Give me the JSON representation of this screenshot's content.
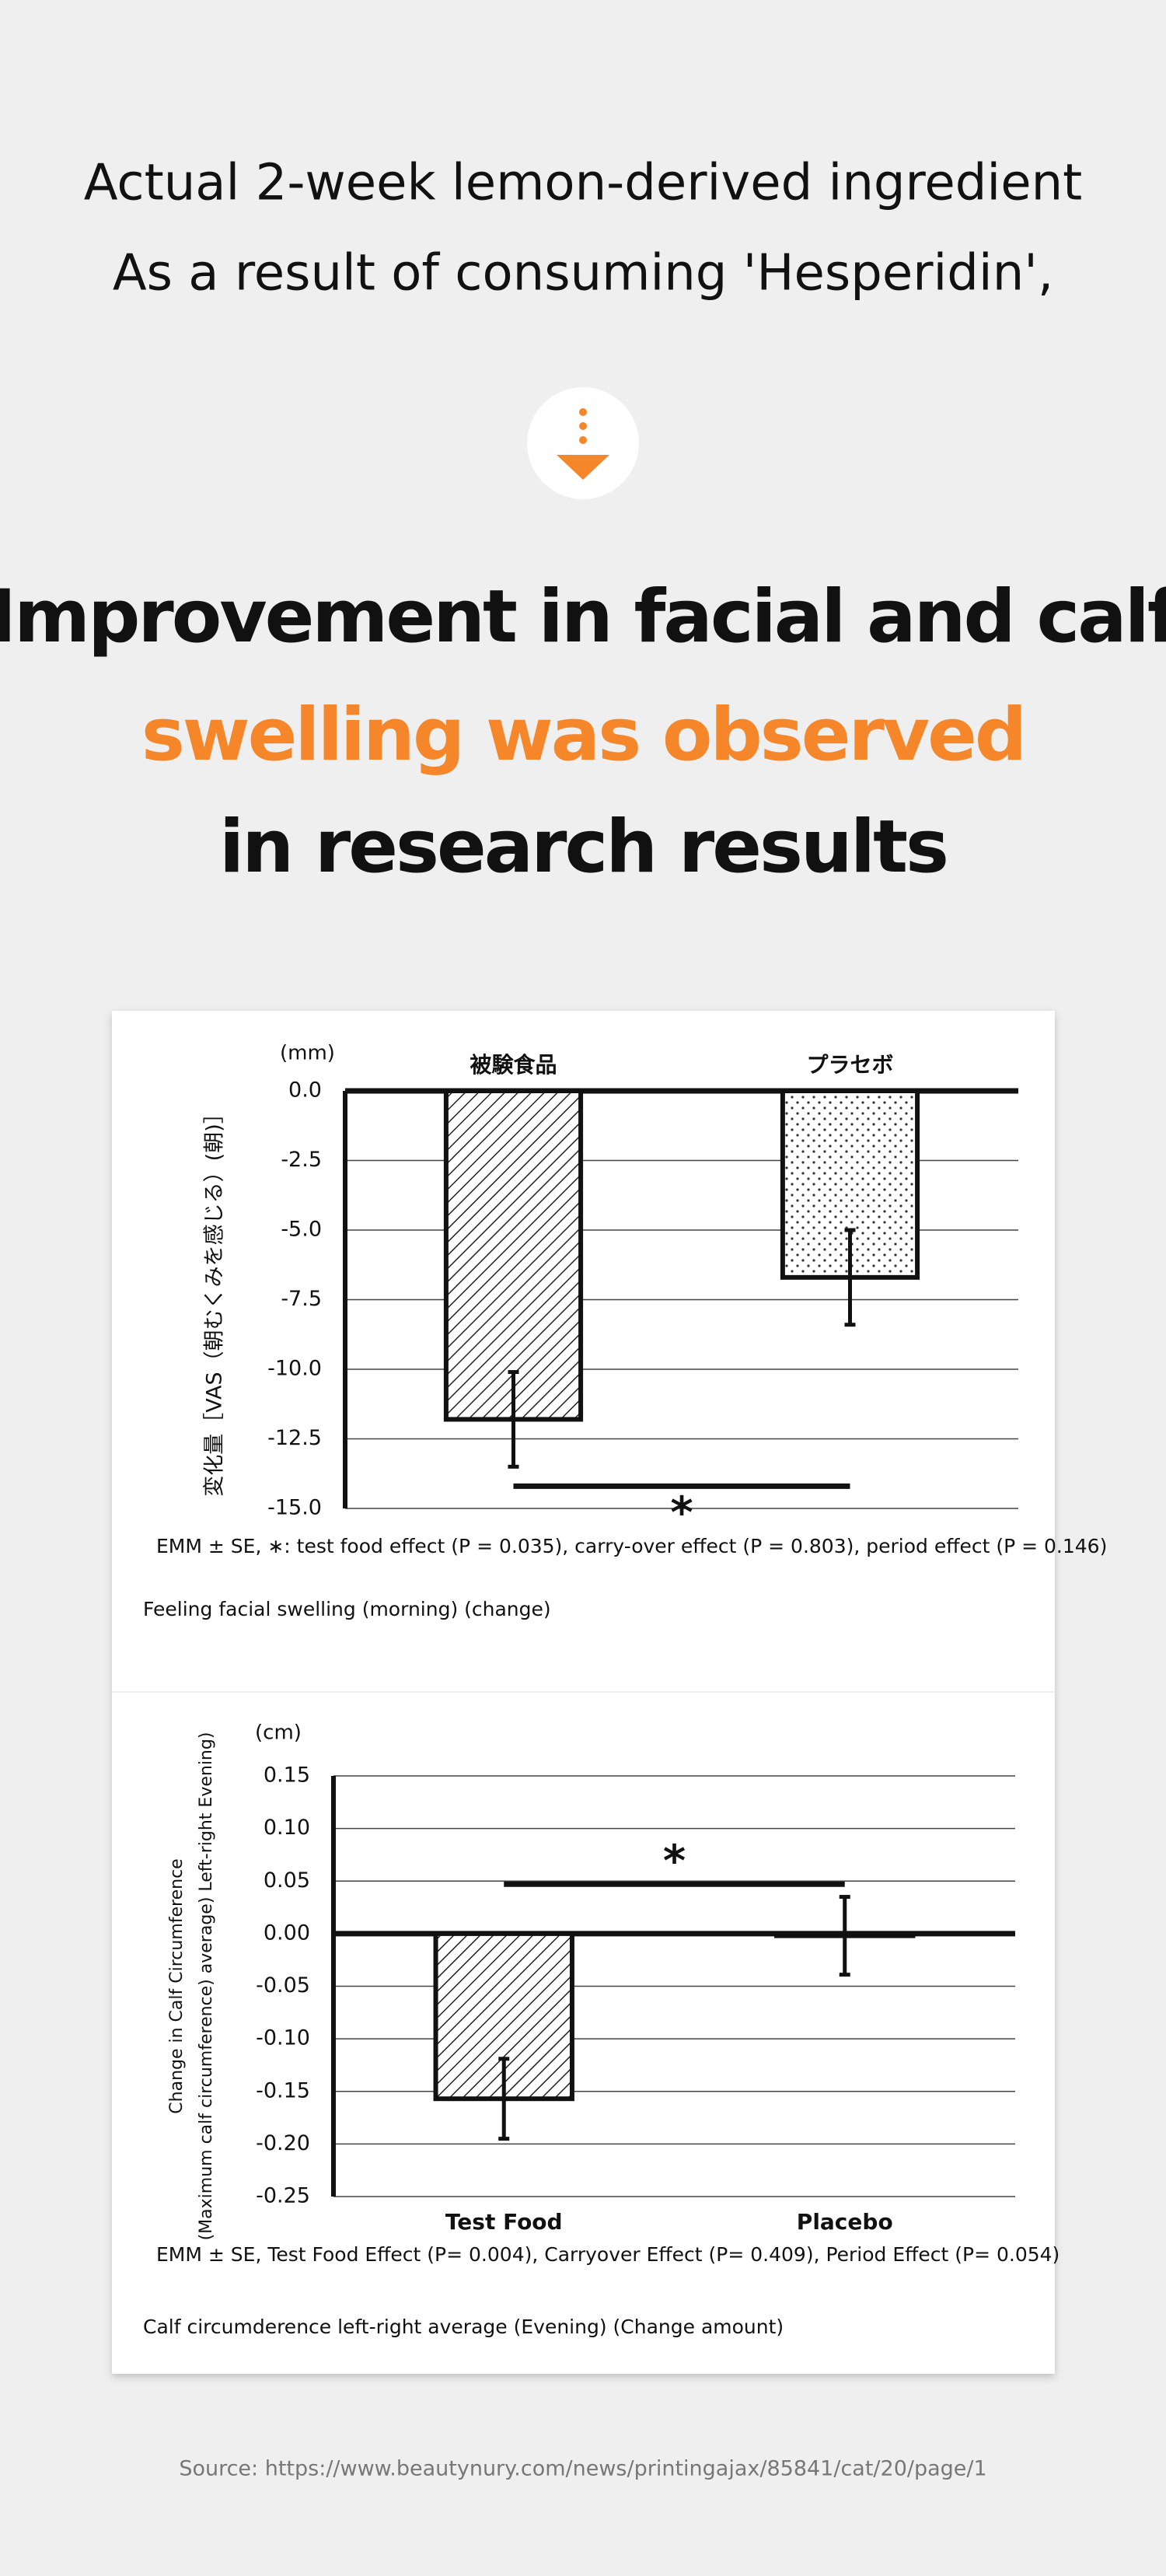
{
  "header": {
    "intro": [
      "Actual 2-week lemon-derived ingredient",
      "As a result of consuming 'Hesperidin',"
    ],
    "headline": [
      "Improvement in facial and calf",
      "swelling was observed",
      "in research results"
    ]
  },
  "chart_data": [
    {
      "type": "bar",
      "unit": "(mm)",
      "ylabel": [
        "変化量［VAS（朝むくみを感じる）(朝)］"
      ],
      "categories": [
        "被験食品",
        "プラセボ"
      ],
      "values": [
        -11.8,
        -6.7
      ],
      "errors": [
        1.7,
        1.7
      ],
      "patterns": [
        "hatch",
        "dots"
      ],
      "category_position": "top",
      "ylim": [
        -15,
        0
      ],
      "yticks": [
        {
          "value": 0,
          "label": "0.0"
        },
        -2.5,
        {
          "value": -5,
          "label": "-5.0"
        },
        -7.5,
        {
          "value": -10,
          "label": "-10.0"
        },
        -12.5,
        {
          "value": -15,
          "label": "-15.0"
        }
      ],
      "grid": true,
      "significance": {
        "label": "*",
        "y": -14.2,
        "position": "below"
      },
      "note": "EMM ± SE, ∗: test food effect (P = 0.035), carry-over effect (P = 0.803), period effect (P = 0.146)",
      "caption": "Feeling facial swelling (morning) (change)"
    },
    {
      "type": "bar",
      "unit": "(cm)",
      "ylabel": [
        "Change in Calf Circumference",
        "(Maximum calf circumference) average) Left-right Evening)"
      ],
      "categories": [
        "Test Food",
        "Placebo"
      ],
      "values": [
        -0.157,
        -0.002
      ],
      "errors": [
        0.038,
        0.037
      ],
      "patterns": [
        "hatch",
        "none"
      ],
      "category_position": "bottom",
      "ylim": [
        -0.25,
        0.15
      ],
      "yticks": [
        0.15,
        {
          "value": 0.1,
          "label": "0.10"
        },
        0.05,
        {
          "value": 0,
          "label": "0.00"
        },
        -0.05,
        {
          "value": -0.1,
          "label": "-0.10"
        },
        -0.15,
        {
          "value": -0.2,
          "label": "-0.20"
        },
        -0.25
      ],
      "grid": true,
      "significance": {
        "label": "*",
        "y": 0.047,
        "position": "above"
      },
      "note": "EMM ± SE, Test Food Effect (P= 0.004), Carryover Effect (P= 0.409), Period Effect (P= 0.054)",
      "caption": "Calf circumderence left-right average (Evening) (Change amount)"
    }
  ],
  "source": "Source: https://www.beautynury.com/news/printingajax/85841/cat/20/page/1"
}
